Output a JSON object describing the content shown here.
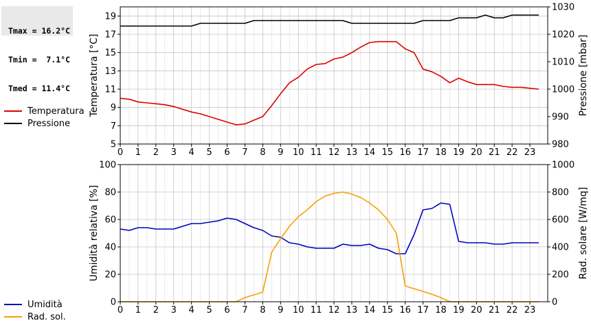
{
  "stats": {
    "tmax": "Tmax = 16.2°C",
    "tmin": "Tmin =  7.1°C",
    "tmed": "Tmed = 11.4°C"
  },
  "legend_top": [
    {
      "label": "Temperatura",
      "color": "#dd0000"
    },
    {
      "label": "Pressione",
      "color": "#000000"
    }
  ],
  "legend_bottom": [
    {
      "label": "Umidità",
      "color": "#0000bb"
    },
    {
      "label": "Rad. sol.",
      "color": "#f5a000"
    }
  ],
  "chart_data": [
    {
      "type": "line",
      "xlim": [
        0,
        24
      ],
      "x_ticks": [
        "0",
        "1",
        "2",
        "3",
        "4",
        "5",
        "6",
        "7",
        "8",
        "9",
        "10",
        "11",
        "12",
        "13",
        "14",
        "15",
        "16",
        "17",
        "18",
        "19",
        "20",
        "21",
        "22",
        "23"
      ],
      "ylabel_left": "Temperatura [°C]",
      "ylim_left": [
        5,
        20
      ],
      "y_ticks_left": [
        "5",
        "7",
        "9",
        "11",
        "13",
        "15",
        "17",
        "19"
      ],
      "ylabel_right": "Pressione [mbar]",
      "ylim_right": [
        980,
        1030
      ],
      "y_ticks_right": [
        "980",
        "990",
        "1000",
        "1010",
        "1020",
        "1030"
      ],
      "grid": true,
      "series": [
        {
          "name": "Temperatura",
          "axis": "left",
          "color": "#dd0000",
          "x": [
            0,
            0.5,
            1,
            1.5,
            2,
            2.5,
            3,
            3.5,
            4,
            4.5,
            5,
            5.5,
            6,
            6.5,
            7,
            7.5,
            8,
            8.5,
            9,
            9.5,
            10,
            10.5,
            11,
            11.5,
            12,
            12.5,
            13,
            13.5,
            14,
            14.5,
            15,
            15.5,
            16,
            16.5,
            17,
            17.5,
            18,
            18.5,
            19,
            19.5,
            20,
            20.5,
            21,
            21.5,
            22,
            22.5,
            23,
            23.5
          ],
          "y": [
            10,
            9.9,
            9.6,
            9.5,
            9.4,
            9.3,
            9.1,
            8.8,
            8.5,
            8.3,
            8.0,
            7.7,
            7.4,
            7.1,
            7.2,
            7.6,
            8.0,
            9.2,
            10.5,
            11.7,
            12.3,
            13.2,
            13.7,
            13.8,
            14.3,
            14.5,
            15.0,
            15.6,
            16.1,
            16.2,
            16.2,
            16.2,
            15.4,
            15.0,
            13.2,
            12.9,
            12.4,
            11.7,
            12.2,
            11.8,
            11.5,
            11.5,
            11.5,
            11.3,
            11.2,
            11.2,
            11.1,
            11.0
          ]
        },
        {
          "name": "Pressione",
          "axis": "right",
          "color": "#000000",
          "x": [
            0,
            0.5,
            1,
            1.5,
            2,
            2.5,
            3,
            3.5,
            4,
            4.5,
            5,
            5.5,
            6,
            6.5,
            7,
            7.5,
            8,
            8.5,
            9,
            9.5,
            10,
            10.5,
            11,
            11.5,
            12,
            12.5,
            13,
            13.5,
            14,
            14.5,
            15,
            15.5,
            16,
            16.5,
            17,
            17.5,
            18,
            18.5,
            19,
            19.5,
            20,
            20.5,
            21,
            21.5,
            22,
            22.5,
            23,
            23.5
          ],
          "y": [
            1023,
            1023,
            1023,
            1023,
            1023,
            1023,
            1023,
            1023,
            1023,
            1024,
            1024,
            1024,
            1024,
            1024,
            1024,
            1025,
            1025,
            1025,
            1025,
            1025,
            1025,
            1025,
            1025,
            1025,
            1025,
            1025,
            1024,
            1024,
            1024,
            1024,
            1024,
            1024,
            1024,
            1024,
            1025,
            1025,
            1025,
            1025,
            1026,
            1026,
            1026,
            1027,
            1026,
            1026,
            1027,
            1027,
            1027,
            1027
          ]
        }
      ]
    },
    {
      "type": "line",
      "xlim": [
        0,
        24
      ],
      "x_ticks": [
        "0",
        "1",
        "2",
        "3",
        "4",
        "5",
        "6",
        "7",
        "8",
        "9",
        "10",
        "11",
        "12",
        "13",
        "14",
        "15",
        "16",
        "17",
        "18",
        "19",
        "20",
        "21",
        "22",
        "23"
      ],
      "ylabel_left": "Umidità relativa [%]",
      "ylim_left": [
        0,
        100
      ],
      "y_ticks_left": [
        "0",
        "20",
        "40",
        "60",
        "80",
        "100"
      ],
      "ylabel_right": "Rad. solare [W/mq]",
      "ylim_right": [
        0,
        1000
      ],
      "y_ticks_right": [
        "0",
        "200",
        "400",
        "600",
        "800",
        "1000"
      ],
      "grid": true,
      "series": [
        {
          "name": "Umidità",
          "axis": "left",
          "color": "#0000bb",
          "x": [
            0,
            0.5,
            1,
            1.5,
            2,
            2.5,
            3,
            3.5,
            4,
            4.5,
            5,
            5.5,
            6,
            6.5,
            7,
            7.5,
            8,
            8.5,
            9,
            9.5,
            10,
            10.5,
            11,
            11.5,
            12,
            12.5,
            13,
            13.5,
            14,
            14.5,
            15,
            15.5,
            16,
            16.5,
            17,
            17.5,
            18,
            18.5,
            19,
            19.5,
            20,
            20.5,
            21,
            21.5,
            22,
            22.5,
            23,
            23.5
          ],
          "y": [
            53,
            52,
            54,
            54,
            53,
            53,
            53,
            55,
            57,
            57,
            58,
            59,
            61,
            60,
            57,
            54,
            52,
            48,
            47,
            43,
            42,
            40,
            39,
            39,
            39,
            42,
            41,
            41,
            42,
            39,
            38,
            35,
            35,
            49,
            67,
            68,
            72,
            71,
            44,
            43,
            43,
            43,
            42,
            42,
            43,
            43,
            43,
            43
          ]
        },
        {
          "name": "Rad. sol.",
          "axis": "right",
          "color": "#f5a000",
          "x": [
            0,
            0.5,
            1,
            1.5,
            2,
            2.5,
            3,
            3.5,
            4,
            4.5,
            5,
            5.5,
            6,
            6.5,
            7,
            7.5,
            8,
            8.5,
            9,
            9.5,
            10,
            10.5,
            11,
            11.5,
            12,
            12.5,
            13,
            13.5,
            14,
            14.5,
            15,
            15.5,
            16,
            16.5,
            17,
            17.5,
            18,
            18.5,
            19,
            19.5,
            20,
            20.5,
            21,
            21.5,
            22,
            22.5,
            23,
            23.5
          ],
          "y": [
            0,
            0,
            0,
            0,
            0,
            0,
            0,
            0,
            0,
            0,
            0,
            0,
            0,
            0,
            30,
            50,
            70,
            360,
            460,
            550,
            620,
            670,
            730,
            770,
            790,
            800,
            785,
            760,
            720,
            670,
            600,
            500,
            115,
            95,
            75,
            55,
            30,
            0,
            0,
            0,
            0,
            0,
            0,
            0,
            0,
            0,
            0,
            0
          ]
        }
      ]
    }
  ]
}
